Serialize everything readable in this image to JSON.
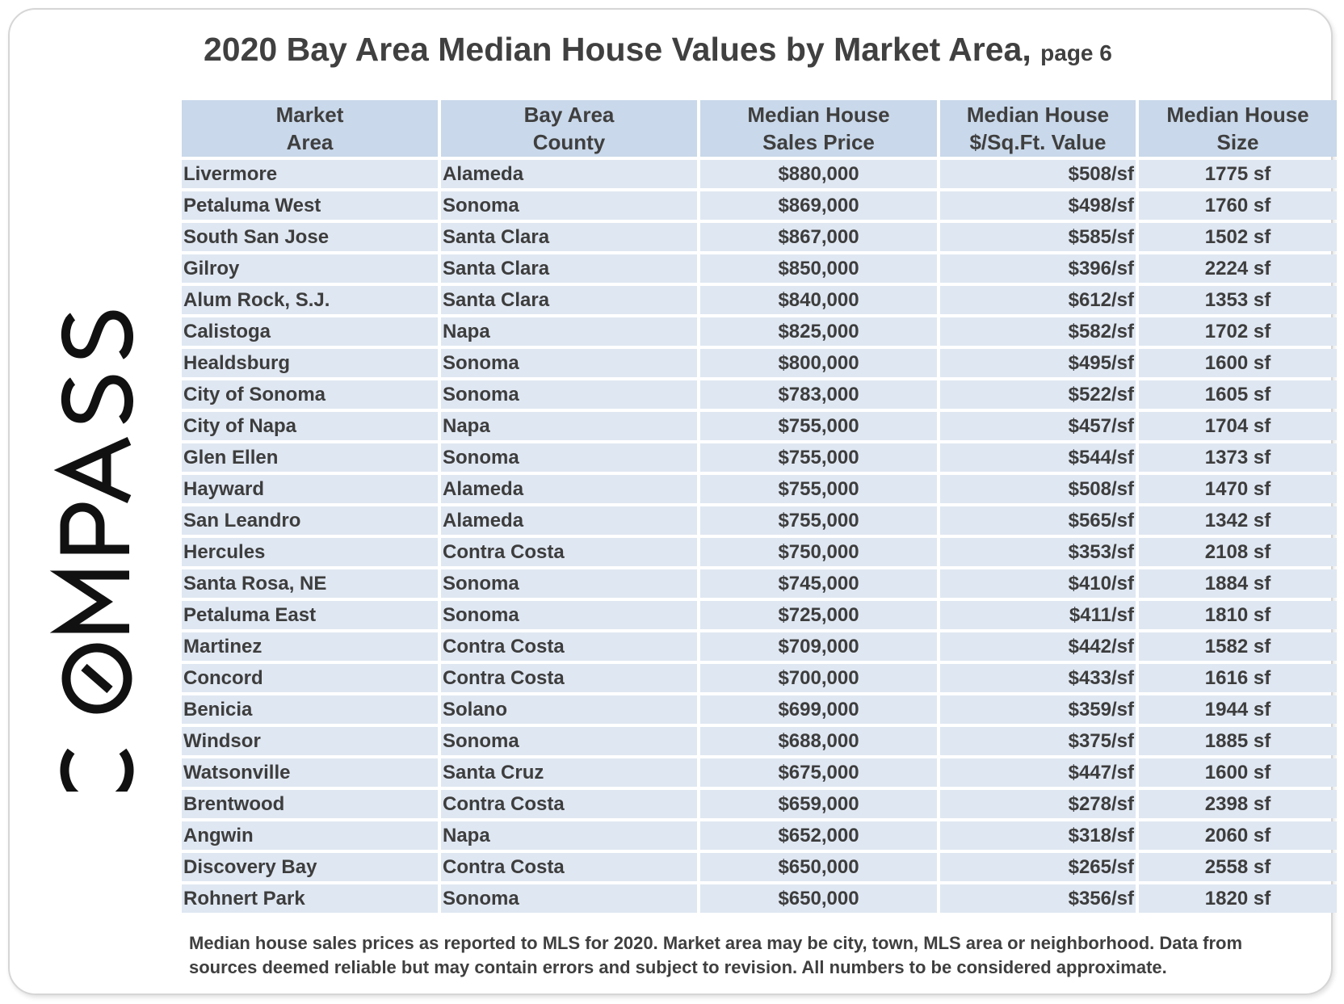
{
  "title": {
    "main": "2020 Bay Area Median House Values by Market Area,",
    "page": "page 6"
  },
  "logo": {
    "text": "COMPASS"
  },
  "table": {
    "headers": [
      [
        "Market",
        "Area"
      ],
      [
        "Bay Area",
        "County"
      ],
      [
        "Median House",
        "Sales Price"
      ],
      [
        "Median House",
        "$/Sq.Ft. Value"
      ],
      [
        "Median House",
        "Size"
      ]
    ],
    "rows": [
      [
        "Livermore",
        "Alameda",
        "$880,000",
        "$508/sf",
        "1775 sf"
      ],
      [
        "Petaluma West",
        "Sonoma",
        "$869,000",
        "$498/sf",
        "1760 sf"
      ],
      [
        "South San Jose",
        "Santa Clara",
        "$867,000",
        "$585/sf",
        "1502 sf"
      ],
      [
        "Gilroy",
        "Santa Clara",
        "$850,000",
        "$396/sf",
        "2224 sf"
      ],
      [
        "Alum Rock, S.J.",
        "Santa Clara",
        "$840,000",
        "$612/sf",
        "1353 sf"
      ],
      [
        "Calistoga",
        "Napa",
        "$825,000",
        "$582/sf",
        "1702 sf"
      ],
      [
        "Healdsburg",
        "Sonoma",
        "$800,000",
        "$495/sf",
        "1600 sf"
      ],
      [
        "City of Sonoma",
        "Sonoma",
        "$783,000",
        "$522/sf",
        "1605 sf"
      ],
      [
        "City of Napa",
        "Napa",
        "$755,000",
        "$457/sf",
        "1704 sf"
      ],
      [
        "Glen Ellen",
        "Sonoma",
        "$755,000",
        "$544/sf",
        "1373 sf"
      ],
      [
        "Hayward",
        "Alameda",
        "$755,000",
        "$508/sf",
        "1470 sf"
      ],
      [
        "San Leandro",
        "Alameda",
        "$755,000",
        "$565/sf",
        "1342 sf"
      ],
      [
        "Hercules",
        "Contra Costa",
        "$750,000",
        "$353/sf",
        "2108 sf"
      ],
      [
        "Santa Rosa, NE",
        "Sonoma",
        "$745,000",
        "$410/sf",
        "1884 sf"
      ],
      [
        "Petaluma East",
        "Sonoma",
        "$725,000",
        "$411/sf",
        "1810 sf"
      ],
      [
        "Martinez",
        "Contra Costa",
        "$709,000",
        "$442/sf",
        "1582 sf"
      ],
      [
        "Concord",
        "Contra Costa",
        "$700,000",
        "$433/sf",
        "1616 sf"
      ],
      [
        "Benicia",
        "Solano",
        "$699,000",
        "$359/sf",
        "1944 sf"
      ],
      [
        "Windsor",
        "Sonoma",
        "$688,000",
        "$375/sf",
        "1885 sf"
      ],
      [
        "Watsonville",
        "Santa Cruz",
        "$675,000",
        "$447/sf",
        "1600 sf"
      ],
      [
        "Brentwood",
        "Contra Costa",
        "$659,000",
        "$278/sf",
        "2398 sf"
      ],
      [
        "Angwin",
        "Napa",
        "$652,000",
        "$318/sf",
        "2060 sf"
      ],
      [
        "Discovery Bay",
        "Contra Costa",
        "$650,000",
        "$265/sf",
        "2558 sf"
      ],
      [
        "Rohnert Park",
        "Sonoma",
        "$650,000",
        "$356/sf",
        "1820 sf"
      ]
    ]
  },
  "footnote": {
    "line1": "Median house sales prices as reported to MLS for 2020. Market area may be city, town, MLS area or neighborhood. Data from",
    "line2": "sources deemed reliable but may contain errors and subject to revision. All numbers to be considered approximate."
  }
}
